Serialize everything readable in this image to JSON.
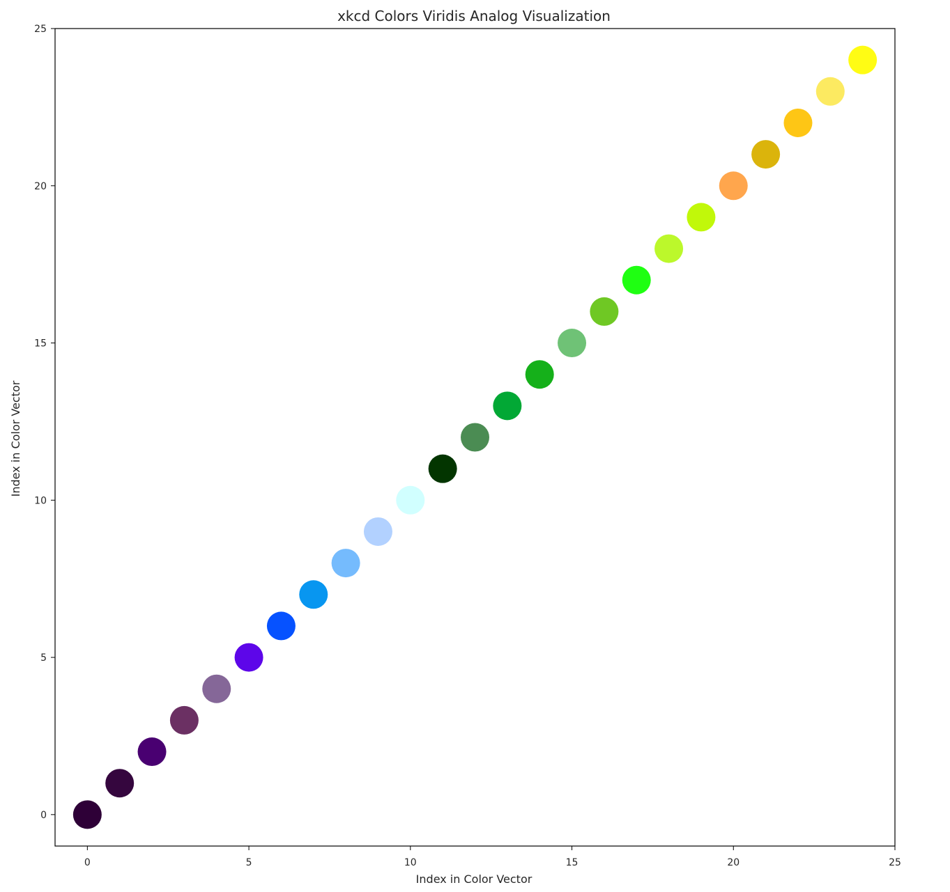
{
  "chart_data": {
    "type": "scatter",
    "title": "xkcd Colors Viridis Analog Visualization",
    "xlabel": "Index in Color Vector",
    "ylabel": "Index in Color Vector",
    "xlim": [
      -1,
      25
    ],
    "ylim": [
      -1,
      25
    ],
    "xticks": [
      0,
      5,
      10,
      15,
      20,
      25
    ],
    "yticks": [
      0,
      5,
      10,
      15,
      20,
      25
    ],
    "grid": false,
    "points": [
      {
        "x": 0,
        "y": 0,
        "color": "#2e0037"
      },
      {
        "x": 1,
        "y": 1,
        "color": "#35063e"
      },
      {
        "x": 2,
        "y": 2,
        "color": "#490071"
      },
      {
        "x": 3,
        "y": 3,
        "color": "#6b3063"
      },
      {
        "x": 4,
        "y": 4,
        "color": "#856798"
      },
      {
        "x": 5,
        "y": 5,
        "color": "#5d06e9"
      },
      {
        "x": 6,
        "y": 6,
        "color": "#0652ff"
      },
      {
        "x": 7,
        "y": 7,
        "color": "#0896f0"
      },
      {
        "x": 8,
        "y": 8,
        "color": "#75bbfd"
      },
      {
        "x": 9,
        "y": 9,
        "color": "#b2d1ff"
      },
      {
        "x": 10,
        "y": 10,
        "color": "#d1ffff"
      },
      {
        "x": 11,
        "y": 11,
        "color": "#033500"
      },
      {
        "x": 12,
        "y": 12,
        "color": "#4b8c53"
      },
      {
        "x": 13,
        "y": 13,
        "color": "#02a835"
      },
      {
        "x": 14,
        "y": 14,
        "color": "#15b01a"
      },
      {
        "x": 15,
        "y": 15,
        "color": "#6fc276"
      },
      {
        "x": 16,
        "y": 16,
        "color": "#6fc824"
      },
      {
        "x": 17,
        "y": 17,
        "color": "#1fff12"
      },
      {
        "x": 18,
        "y": 18,
        "color": "#bcf82b"
      },
      {
        "x": 19,
        "y": 19,
        "color": "#c1f80a"
      },
      {
        "x": 20,
        "y": 20,
        "color": "#ffa64d"
      },
      {
        "x": 21,
        "y": 21,
        "color": "#dbb40c"
      },
      {
        "x": 22,
        "y": 22,
        "color": "#fec615"
      },
      {
        "x": 23,
        "y": 23,
        "color": "#fcea61"
      },
      {
        "x": 24,
        "y": 24,
        "color": "#fffc14"
      }
    ]
  }
}
